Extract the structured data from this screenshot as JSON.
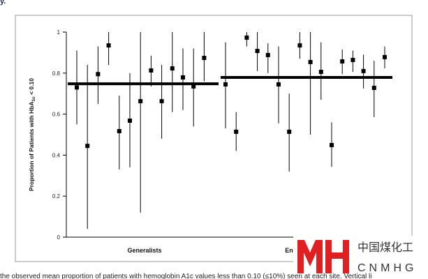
{
  "header_fragment": "y.",
  "caption_fragment": "the observed mean proportion of patients with hemoglobin A1c values less than 0.10 (≤10%) seen at each site. Vertical li",
  "watermark": {
    "cn": "中国煤化工",
    "en": "CNMHG"
  },
  "chart_data": {
    "type": "dot-errorbar",
    "y_label": {
      "main": "Proportion of Patients with HbA",
      "sub": "1c",
      "tail": " < 0.10"
    },
    "ylim": [
      0,
      1
    ],
    "yticks": [
      0,
      0.2,
      0.4,
      0.6,
      0.8,
      1
    ],
    "color": "#000000",
    "groups": [
      {
        "name": "Generalists",
        "mean": 0.748,
        "values": [
          0.73,
          0.445,
          0.795,
          0.935,
          0.517,
          0.568,
          0.663,
          0.813,
          0.663,
          0.823,
          0.779,
          0.735,
          0.874
        ],
        "lower": [
          0.55,
          0.04,
          0.65,
          0.84,
          0.33,
          0.34,
          0.12,
          0.735,
          0.48,
          0.61,
          0.62,
          0.54,
          0.76
        ],
        "upper": [
          0.91,
          0.84,
          0.93,
          1.0,
          0.69,
          0.8,
          1.0,
          0.885,
          0.84,
          1.0,
          0.92,
          0.92,
          1.0
        ]
      },
      {
        "name": "Endocrinologists",
        "mean": 0.779,
        "values": [
          0.745,
          0.514,
          0.973,
          0.908,
          0.888,
          0.745,
          0.514,
          0.935,
          0.854,
          0.806,
          0.449,
          0.857,
          0.864,
          0.81,
          0.728,
          0.878
        ],
        "lower": [
          0.53,
          0.42,
          0.93,
          0.81,
          0.8,
          0.555,
          0.32,
          0.87,
          0.5,
          0.67,
          0.343,
          0.795,
          0.806,
          0.725,
          0.585,
          0.823
        ],
        "upper": [
          0.95,
          0.61,
          1.0,
          1.0,
          0.945,
          0.93,
          0.7,
          1.0,
          1.0,
          0.95,
          0.56,
          0.915,
          0.91,
          0.89,
          0.86,
          0.93
        ]
      }
    ]
  }
}
